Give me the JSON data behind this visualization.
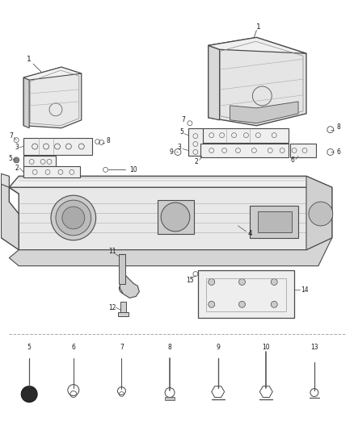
{
  "bg_color": "#ffffff",
  "line_color": "#4a4a4a",
  "text_color": "#1a1a1a",
  "figure_width": 4.38,
  "figure_height": 5.33,
  "dpi": 100,
  "label_fontsize": 6.5,
  "small_fontsize": 5.5
}
